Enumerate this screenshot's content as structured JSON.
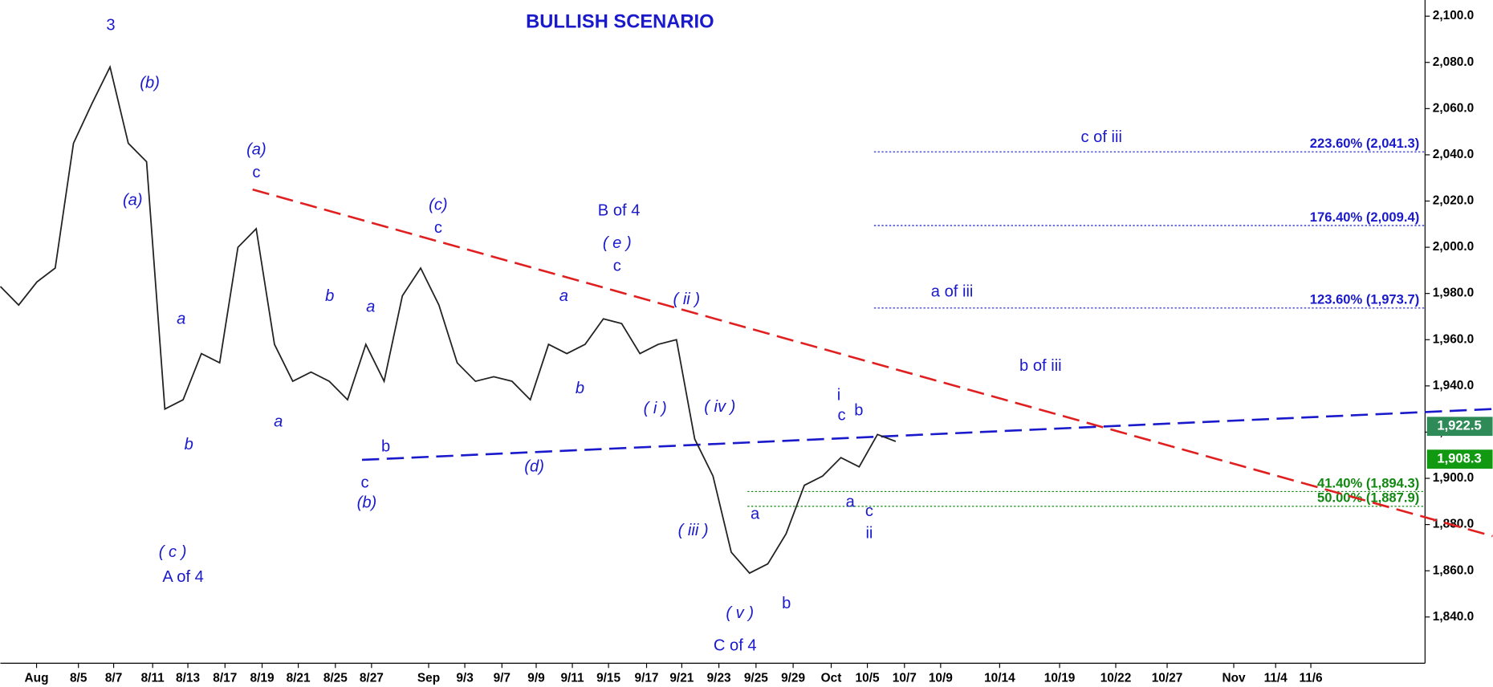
{
  "chart_data": {
    "type": "line",
    "title": "BULLISH SCENARIO",
    "x_labels": [
      "Aug",
      "8/5",
      "8/7",
      "8/11",
      "8/13",
      "8/17",
      "8/19",
      "8/21",
      "8/25",
      "8/27",
      "Sep",
      "9/3",
      "9/7",
      "9/9",
      "9/11",
      "9/15",
      "9/17",
      "9/21",
      "9/23",
      "9/25",
      "9/29",
      "Oct",
      "10/5",
      "10/7",
      "10/9",
      "10/14",
      "10/19",
      "10/22",
      "10/27",
      "Nov",
      "11/4",
      "11/6"
    ],
    "series": [
      {
        "color": "#222222",
        "values": [
          1983,
          1975,
          1985,
          1991,
          2045,
          2062,
          2078,
          2045,
          2037,
          1930,
          1934,
          1954,
          1950,
          2000,
          2008,
          1958,
          1942,
          1946,
          1942,
          1934,
          1958,
          1942,
          1979,
          1991,
          1975,
          1950,
          1942,
          1944,
          1942,
          1934,
          1958,
          1954,
          1958,
          1969,
          1967,
          1954,
          1958,
          1960,
          1917,
          1901,
          1868,
          1859,
          1863,
          1876,
          1897,
          1901,
          1909,
          1905,
          1919,
          1916
        ]
      }
    ],
    "ylim": [
      1820,
      2107
    ],
    "yticks": [
      {
        "value": 1840,
        "label": "1,840.0"
      },
      {
        "value": 1860,
        "label": "1,860.0"
      },
      {
        "value": 1880,
        "label": "1,880.0"
      },
      {
        "value": 1900,
        "label": "1,900.0"
      },
      {
        "value": 1920,
        "label": "1,920.0"
      },
      {
        "value": 1940,
        "label": "1,940.0"
      },
      {
        "value": 1960,
        "label": "1,960.0"
      },
      {
        "value": 1980,
        "label": "1,980.0"
      },
      {
        "value": 2000,
        "label": "2,000.0"
      },
      {
        "value": 2020,
        "label": "2,020.0"
      },
      {
        "value": 2040,
        "label": "2,040.0"
      },
      {
        "value": 2060,
        "label": "2,060.0"
      },
      {
        "value": 2080,
        "label": "2,080.0"
      },
      {
        "value": 2100,
        "label": "2,100.0"
      }
    ],
    "levels": [
      {
        "value": 2041.3,
        "label": "223.60% (2,041.3)",
        "color": "#1a1acc"
      },
      {
        "value": 2009.4,
        "label": "176.40% (2,009.4)",
        "color": "#1a1acc"
      },
      {
        "value": 1973.7,
        "label": "123.60% (1,973.7)",
        "color": "#1a1acc"
      },
      {
        "value": 1894.3,
        "label": "41.40% (1,894.3)",
        "color": "#118811"
      },
      {
        "value": 1887.9,
        "label": "50.00% (1,887.9)",
        "color": "#118811"
      }
    ],
    "trendlines": [
      {
        "color": "#e02020",
        "values": [
          2025,
          1875
        ]
      },
      {
        "color": "#1a1acc",
        "values": [
          1908,
          1930
        ]
      }
    ],
    "price_tags": [
      {
        "value": 1922.5,
        "label": "1,922.5",
        "color": "#2e8b57"
      },
      {
        "value": 1908.3,
        "label": "1,908.3",
        "color": "#119911"
      }
    ],
    "annotations": [
      "3",
      "(b)",
      "(a)",
      "(a)",
      "c",
      "a",
      "b",
      "( c )",
      "A of 4",
      "a",
      "b",
      "a",
      "b",
      "c",
      "(b)",
      "(c)",
      "c",
      "B of 4",
      "( e )",
      "c",
      "( ii )",
      "a",
      "b",
      "(d)",
      "( i )",
      "( iv )",
      "( iii )",
      "a",
      "( v )",
      "b",
      "C of 4",
      "i",
      "c",
      "b",
      "a",
      "c",
      "ii",
      "c of iii",
      "a of iii",
      "b of iii"
    ]
  }
}
